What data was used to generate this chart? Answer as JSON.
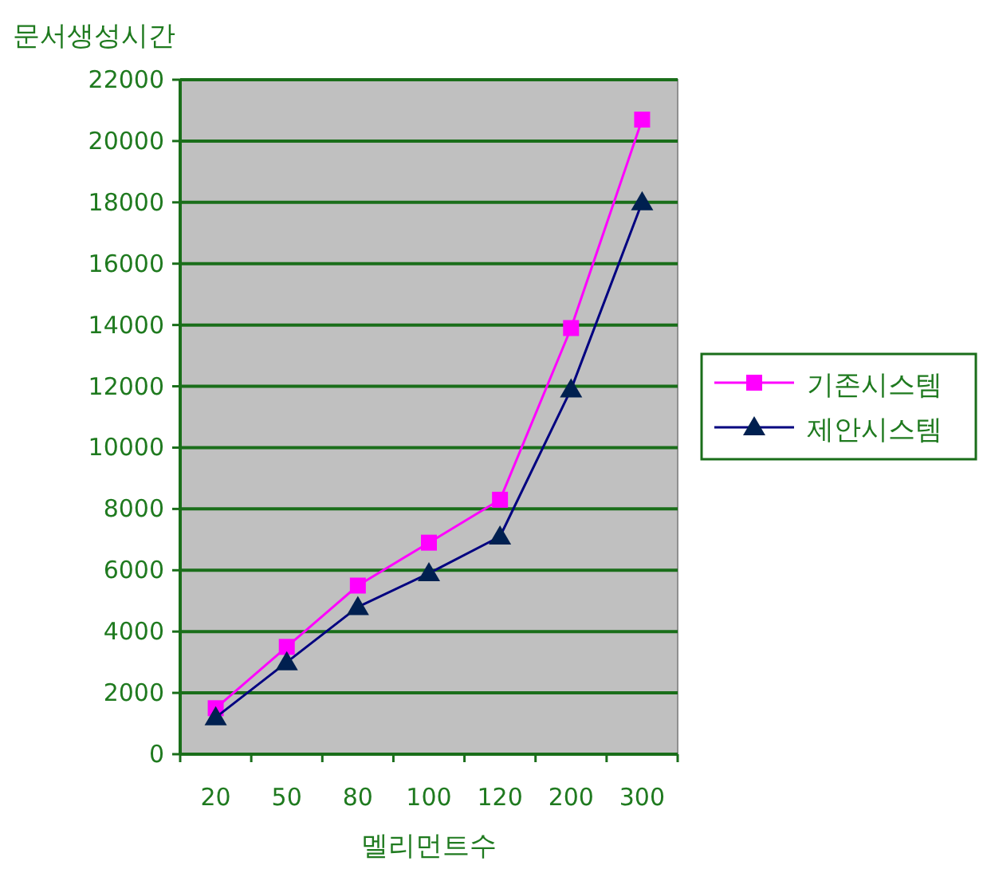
{
  "chart_data": {
    "type": "line",
    "ylabel": "문서생성시간",
    "xlabel": "멜리먼트수",
    "categories": [
      "20",
      "50",
      "80",
      "100",
      "120",
      "200",
      "300"
    ],
    "series": [
      {
        "name": "기존시스템",
        "color": "#ff00ff",
        "marker": "square",
        "values": [
          1500,
          3500,
          5500,
          6900,
          8300,
          13900,
          20700
        ]
      },
      {
        "name": "제안시스템",
        "color": "#000080",
        "marker": "triangle",
        "values": [
          1200,
          3000,
          4800,
          5900,
          7100,
          11900,
          18000
        ]
      }
    ],
    "ylim": [
      0,
      22000
    ],
    "yticks": [
      0,
      2000,
      4000,
      6000,
      8000,
      10000,
      12000,
      14000,
      16000,
      18000,
      20000,
      22000
    ],
    "grid": "y",
    "legend": "right",
    "line_style": "solid"
  }
}
